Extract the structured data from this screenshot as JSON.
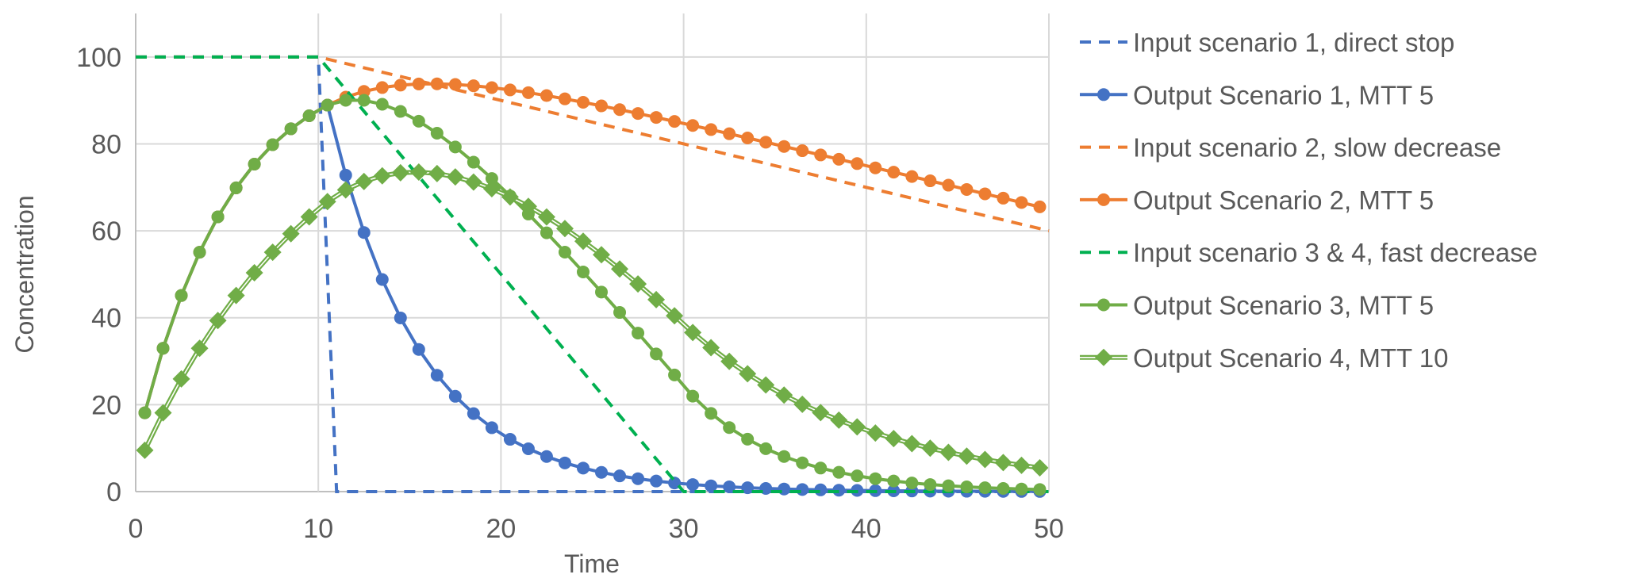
{
  "chart_data": {
    "type": "line",
    "title": "",
    "xlabel": "Time",
    "ylabel": "Concentration",
    "xlim": [
      0,
      50
    ],
    "ylim": [
      0,
      110
    ],
    "xticks": [
      0,
      10,
      20,
      30,
      40,
      50
    ],
    "yticks": [
      0,
      20,
      40,
      60,
      80,
      100
    ],
    "grid": true,
    "legend_position": "right",
    "colors": {
      "blue": "#4472C4",
      "orange": "#ED7D31",
      "green": "#70AD47",
      "input_green": "#00B050"
    },
    "output_x": [
      0.5,
      1.5,
      2.5,
      3.5,
      4.5,
      5.5,
      6.5,
      7.5,
      8.5,
      9.5,
      10.5,
      11.5,
      12.5,
      13.5,
      14.5,
      15.5,
      16.5,
      17.5,
      18.5,
      19.5,
      20.5,
      21.5,
      22.5,
      23.5,
      24.5,
      25.5,
      26.5,
      27.5,
      28.5,
      29.5,
      30.5,
      31.5,
      32.5,
      33.5,
      34.5,
      35.5,
      36.5,
      37.5,
      38.5,
      39.5,
      40.5,
      41.5,
      42.5,
      43.5,
      44.5,
      45.5,
      46.5,
      47.5,
      48.5,
      49.5
    ],
    "series": [
      {
        "name": "Input scenario 1, direct stop",
        "style": "dashed",
        "color": "#4472C4",
        "points": [
          [
            0,
            100
          ],
          [
            10,
            100
          ],
          [
            11,
            0
          ],
          [
            50,
            0
          ]
        ]
      },
      {
        "name": "Output Scenario 1, MTT 5",
        "style": "line-circle",
        "color": "#4472C4",
        "values": [
          18.13,
          32.97,
          45.12,
          55.07,
          63.21,
          69.88,
          75.34,
          79.81,
          83.47,
          86.47,
          88.92,
          72.8,
          59.61,
          48.8,
          39.96,
          32.71,
          26.78,
          21.93,
          17.95,
          14.7,
          12.03,
          9.85,
          8.07,
          6.6,
          5.41,
          4.43,
          3.62,
          2.97,
          2.43,
          1.99,
          1.63,
          1.33,
          1.09,
          0.89,
          0.73,
          0.6,
          0.49,
          0.4,
          0.33,
          0.27,
          0.22,
          0.18,
          0.15,
          0.12,
          0.1,
          0.08,
          0.07,
          0.05,
          0.04,
          0.04
        ]
      },
      {
        "name": "Input scenario 2, slow decrease",
        "style": "dashed",
        "color": "#ED7D31",
        "points": [
          [
            0,
            100
          ],
          [
            10,
            100
          ],
          [
            50,
            60
          ]
        ]
      },
      {
        "name": "Output Scenario 2, MTT 5",
        "style": "line-circle",
        "color": "#ED7D31",
        "values": [
          18.13,
          32.97,
          45.12,
          55.07,
          63.21,
          69.88,
          75.34,
          79.81,
          83.47,
          86.47,
          88.92,
          90.75,
          92.07,
          92.96,
          93.51,
          93.78,
          93.82,
          93.67,
          93.37,
          92.94,
          92.41,
          91.79,
          91.11,
          90.36,
          89.57,
          88.74,
          87.88,
          87.0,
          86.09,
          85.17,
          84.23,
          83.29,
          82.33,
          81.36,
          80.39,
          79.41,
          78.43,
          77.45,
          76.46,
          75.47,
          74.48,
          73.49,
          72.49,
          71.5,
          70.5,
          69.51,
          68.51,
          67.51,
          66.51,
          65.51
        ]
      },
      {
        "name": "Input scenario 3 & 4, fast decrease",
        "style": "dashed",
        "color": "#00B050",
        "points": [
          [
            0,
            100
          ],
          [
            10,
            100
          ],
          [
            30,
            0
          ],
          [
            50,
            0
          ]
        ]
      },
      {
        "name": "Output Scenario 3, MTT 5",
        "style": "line-circle",
        "color": "#70AD47",
        "values": [
          18.13,
          32.97,
          45.12,
          55.07,
          63.21,
          69.88,
          75.34,
          79.81,
          83.47,
          86.47,
          88.92,
          90.02,
          90.02,
          89.11,
          87.46,
          85.21,
          82.45,
          79.29,
          75.79,
          72.03,
          68.03,
          63.86,
          59.54,
          55.09,
          50.54,
          45.91,
          41.22,
          36.47,
          31.67,
          26.84,
          21.97,
          17.99,
          14.73,
          12.06,
          9.87,
          8.08,
          6.62,
          5.42,
          4.44,
          3.63,
          2.97,
          2.44,
          1.99,
          1.63,
          1.34,
          1.09,
          0.9,
          0.73,
          0.6,
          0.49
        ]
      },
      {
        "name": "Output Scenario 4, MTT 10",
        "style": "double-line-diamond",
        "color": "#70AD47",
        "values": [
          9.52,
          18.13,
          25.92,
          32.97,
          39.35,
          45.12,
          50.34,
          55.07,
          59.34,
          63.21,
          66.71,
          69.4,
          71.36,
          72.66,
          73.36,
          73.51,
          73.18,
          72.4,
          71.22,
          69.68,
          67.8,
          65.63,
          63.19,
          60.51,
          57.61,
          54.5,
          51.22,
          47.77,
          44.18,
          40.45,
          36.6,
          33.12,
          29.97,
          27.12,
          24.54,
          22.2,
          20.09,
          18.18,
          16.45,
          14.88,
          13.47,
          12.19,
          11.03,
          9.98,
          9.03,
          8.17,
          7.39,
          6.69,
          6.05,
          5.48
        ]
      }
    ]
  }
}
